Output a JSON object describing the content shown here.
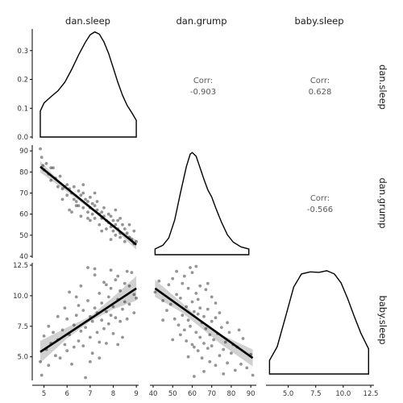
{
  "chart_data": {
    "type": "scatter-matrix",
    "variables": [
      "dan.sleep",
      "dan.grump",
      "baby.sleep"
    ],
    "axis_ranges": {
      "dan.sleep": [
        4.7,
        9.1
      ],
      "dan.grump": [
        40,
        92
      ],
      "baby.sleep": [
        3.2,
        12.5
      ],
      "density_y": [
        0,
        0.375
      ]
    },
    "ticks": {
      "dan.sleep": [
        "5",
        "6",
        "7",
        "8",
        "9"
      ],
      "dan.grump": [
        "40",
        "50",
        "60",
        "70",
        "80",
        "90"
      ],
      "baby.sleep_y": [
        "5.0",
        "7.5",
        "10.0",
        "12.5"
      ],
      "baby.sleep_x": [
        "5.0",
        "7.5",
        "10.0",
        "12.5"
      ],
      "density_y": [
        "0.0",
        "0.1",
        "0.2",
        "0.3"
      ]
    },
    "correlations": [
      {
        "row": "dan.sleep",
        "col": "dan.grump",
        "label": "Corr:",
        "value": "-0.903"
      },
      {
        "row": "dan.sleep",
        "col": "baby.sleep",
        "label": "Corr:",
        "value": "0.628"
      },
      {
        "row": "dan.grump",
        "col": "baby.sleep",
        "label": "Corr:",
        "value": "-0.566"
      }
    ],
    "densities": {
      "dan.sleep": [
        [
          4.84,
          0.09
        ],
        [
          5.0,
          0.118
        ],
        [
          5.3,
          0.14
        ],
        [
          5.6,
          0.16
        ],
        [
          5.9,
          0.19
        ],
        [
          6.2,
          0.235
        ],
        [
          6.5,
          0.285
        ],
        [
          6.8,
          0.33
        ],
        [
          7.0,
          0.355
        ],
        [
          7.2,
          0.365
        ],
        [
          7.4,
          0.357
        ],
        [
          7.6,
          0.33
        ],
        [
          7.8,
          0.29
        ],
        [
          8.0,
          0.24
        ],
        [
          8.2,
          0.19
        ],
        [
          8.4,
          0.145
        ],
        [
          8.6,
          0.11
        ],
        [
          8.8,
          0.085
        ],
        [
          9.0,
          0.058
        ]
      ],
      "dan.grump": [
        [
          41,
          0.055
        ],
        [
          45,
          0.09
        ],
        [
          48,
          0.16
        ],
        [
          51,
          0.33
        ],
        [
          54,
          0.59
        ],
        [
          57,
          0.84
        ],
        [
          59,
          0.96
        ],
        [
          60,
          0.975
        ],
        [
          62,
          0.94
        ],
        [
          64,
          0.83
        ],
        [
          66,
          0.72
        ],
        [
          68,
          0.62
        ],
        [
          70,
          0.55
        ],
        [
          72,
          0.45
        ],
        [
          75,
          0.31
        ],
        [
          78,
          0.19
        ],
        [
          81,
          0.12
        ],
        [
          85,
          0.075
        ],
        [
          89,
          0.055
        ]
      ],
      "baby.sleep": [
        [
          3.3,
          0.13
        ],
        [
          4.0,
          0.26
        ],
        [
          4.8,
          0.56
        ],
        [
          5.5,
          0.83
        ],
        [
          6.2,
          0.955
        ],
        [
          7.0,
          0.975
        ],
        [
          7.8,
          0.97
        ],
        [
          8.5,
          0.985
        ],
        [
          9.2,
          0.955
        ],
        [
          9.8,
          0.87
        ],
        [
          10.4,
          0.72
        ],
        [
          11.0,
          0.55
        ],
        [
          11.6,
          0.39
        ],
        [
          12.3,
          0.24
        ]
      ]
    },
    "pairs": {
      "grump_vs_sleep": {
        "points": [
          [
            4.84,
            91
          ],
          [
            4.9,
            87
          ],
          [
            4.95,
            83
          ],
          [
            5.0,
            81
          ],
          [
            5.1,
            84
          ],
          [
            5.2,
            79
          ],
          [
            5.3,
            82
          ],
          [
            5.4,
            82
          ],
          [
            5.5,
            77
          ],
          [
            5.6,
            73
          ],
          [
            5.7,
            78
          ],
          [
            5.8,
            72
          ],
          [
            5.9,
            73
          ],
          [
            6.0,
            74
          ],
          [
            6.0,
            69
          ],
          [
            6.1,
            72
          ],
          [
            6.2,
            70
          ],
          [
            6.3,
            67
          ],
          [
            6.3,
            73
          ],
          [
            6.4,
            66
          ],
          [
            6.5,
            71
          ],
          [
            6.5,
            64
          ],
          [
            6.6,
            69
          ],
          [
            6.7,
            70
          ],
          [
            6.7,
            63
          ],
          [
            6.8,
            67
          ],
          [
            6.9,
            66
          ],
          [
            6.9,
            61
          ],
          [
            7.0,
            68
          ],
          [
            7.0,
            63
          ],
          [
            7.1,
            65
          ],
          [
            7.1,
            60
          ],
          [
            7.2,
            64
          ],
          [
            7.2,
            58
          ],
          [
            7.3,
            62
          ],
          [
            7.3,
            66
          ],
          [
            7.4,
            60
          ],
          [
            7.4,
            55
          ],
          [
            7.5,
            61
          ],
          [
            7.5,
            58
          ],
          [
            7.6,
            59
          ],
          [
            7.6,
            63
          ],
          [
            7.7,
            57
          ],
          [
            7.7,
            53
          ],
          [
            7.8,
            60
          ],
          [
            7.8,
            56
          ],
          [
            7.9,
            54
          ],
          [
            7.9,
            59
          ],
          [
            8.0,
            57
          ],
          [
            8.0,
            52
          ],
          [
            8.1,
            55
          ],
          [
            8.1,
            50
          ],
          [
            8.2,
            53
          ],
          [
            8.2,
            57
          ],
          [
            8.3,
            51
          ],
          [
            8.3,
            49
          ],
          [
            8.4,
            55
          ],
          [
            8.5,
            53
          ],
          [
            8.5,
            47
          ],
          [
            8.6,
            51
          ],
          [
            8.7,
            49
          ],
          [
            8.7,
            55
          ],
          [
            8.8,
            48
          ],
          [
            8.9,
            52
          ],
          [
            8.9,
            46
          ],
          [
            9.0,
            47
          ],
          [
            6.6,
            59
          ],
          [
            7.2,
            70
          ],
          [
            6.1,
            62
          ],
          [
            5.3,
            76
          ],
          [
            7.9,
            48
          ],
          [
            6.7,
            74
          ],
          [
            8.3,
            58
          ],
          [
            7.0,
            57
          ],
          [
            6.4,
            64
          ],
          [
            5.8,
            67
          ],
          [
            8.1,
            62
          ],
          [
            7.5,
            52
          ],
          [
            6.9,
            58
          ],
          [
            6.2,
            61
          ]
        ],
        "fit": [
          [
            4.84,
            82.5
          ],
          [
            9.0,
            45.5
          ]
        ],
        "band": [
          [
            4.84,
            85.2,
            79.8
          ],
          [
            6.0,
            71.8,
            70.6
          ],
          [
            7.0,
            63.4,
            62.4
          ],
          [
            8.0,
            54.7,
            53.3
          ],
          [
            9.0,
            47.8,
            43.2
          ]
        ]
      },
      "baby_vs_sleep": {
        "points": [
          [
            4.84,
            4.6
          ],
          [
            4.9,
            3.5
          ],
          [
            5.0,
            6.7
          ],
          [
            5.1,
            5.6
          ],
          [
            5.2,
            4.3
          ],
          [
            5.3,
            6.1
          ],
          [
            5.4,
            7.0
          ],
          [
            5.5,
            5.1
          ],
          [
            5.6,
            6.4
          ],
          [
            5.7,
            4.9
          ],
          [
            5.8,
            7.2
          ],
          [
            5.9,
            6.0
          ],
          [
            6.0,
            5.5
          ],
          [
            6.0,
            8.1
          ],
          [
            6.1,
            6.8
          ],
          [
            6.2,
            4.4
          ],
          [
            6.3,
            7.6
          ],
          [
            6.3,
            5.8
          ],
          [
            6.4,
            8.4
          ],
          [
            6.5,
            6.3
          ],
          [
            6.5,
            9.2
          ],
          [
            6.6,
            7.1
          ],
          [
            6.7,
            5.9
          ],
          [
            6.7,
            8.8
          ],
          [
            6.8,
            7.4
          ],
          [
            6.8,
            3.3
          ],
          [
            6.9,
            9.6
          ],
          [
            7.0,
            6.6
          ],
          [
            7.0,
            8.3
          ],
          [
            7.1,
            7.9
          ],
          [
            7.1,
            5.3
          ],
          [
            7.2,
            9.0
          ],
          [
            7.2,
            11.7
          ],
          [
            7.3,
            7.0
          ],
          [
            7.3,
            8.6
          ],
          [
            7.4,
            6.2
          ],
          [
            7.4,
            10.2
          ],
          [
            7.5,
            8.0
          ],
          [
            7.5,
            9.4
          ],
          [
            7.6,
            7.3
          ],
          [
            7.6,
            11.1
          ],
          [
            7.7,
            8.7
          ],
          [
            7.7,
            6.1
          ],
          [
            7.8,
            9.9
          ],
          [
            7.8,
            7.7
          ],
          [
            7.9,
            10.6
          ],
          [
            7.9,
            8.4
          ],
          [
            8.0,
            9.1
          ],
          [
            8.0,
            6.9
          ],
          [
            8.1,
            11.3
          ],
          [
            8.1,
            8.2
          ],
          [
            8.2,
            9.7
          ],
          [
            8.2,
            6.0
          ],
          [
            8.3,
            10.4
          ],
          [
            8.3,
            7.9
          ],
          [
            8.4,
            8.9
          ],
          [
            8.5,
            11.0
          ],
          [
            8.5,
            9.5
          ],
          [
            8.6,
            8.1
          ],
          [
            8.7,
            10.8
          ],
          [
            8.7,
            9.3
          ],
          [
            8.8,
            11.9
          ],
          [
            8.9,
            8.6
          ],
          [
            8.9,
            10.1
          ],
          [
            9.0,
            9.8
          ],
          [
            7.2,
            12.2
          ],
          [
            6.4,
            9.9
          ],
          [
            5.6,
            8.3
          ],
          [
            7.9,
            12.1
          ],
          [
            8.6,
            12.0
          ],
          [
            6.1,
            10.3
          ],
          [
            7.4,
            4.9
          ],
          [
            5.2,
            7.5
          ],
          [
            6.9,
            12.3
          ],
          [
            8.4,
            6.6
          ],
          [
            7.7,
            10.9
          ],
          [
            6.6,
            10.8
          ],
          [
            8.2,
            11.6
          ],
          [
            5.9,
            9.0
          ],
          [
            7.0,
            4.6
          ]
        ],
        "fit": [
          [
            4.84,
            5.4
          ],
          [
            9.0,
            10.6
          ]
        ],
        "band": [
          [
            4.84,
            6.3,
            4.5
          ],
          [
            6.0,
            7.4,
            6.5
          ],
          [
            7.0,
            8.3,
            7.9
          ],
          [
            8.0,
            9.9,
            8.9
          ],
          [
            9.0,
            11.6,
            9.6
          ]
        ]
      },
      "baby_vs_grump": {
        "points": [
          [
            41,
            10.3
          ],
          [
            43,
            11.2
          ],
          [
            45,
            9.6
          ],
          [
            47,
            8.8
          ],
          [
            48,
            10.9
          ],
          [
            49,
            9.3
          ],
          [
            50,
            11.4
          ],
          [
            51,
            8.1
          ],
          [
            52,
            10.1
          ],
          [
            53,
            7.6
          ],
          [
            54,
            9.8
          ],
          [
            55,
            8.4
          ],
          [
            55,
            11.0
          ],
          [
            56,
            7.2
          ],
          [
            57,
            9.1
          ],
          [
            57,
            6.3
          ],
          [
            58,
            10.6
          ],
          [
            58,
            8.0
          ],
          [
            59,
            7.5
          ],
          [
            59,
            12.3
          ],
          [
            60,
            6.0
          ],
          [
            60,
            9.5
          ],
          [
            61,
            8.7
          ],
          [
            61,
            5.8
          ],
          [
            62,
            10.2
          ],
          [
            62,
            7.0
          ],
          [
            63,
            8.5
          ],
          [
            63,
            5.5
          ],
          [
            64,
            9.0
          ],
          [
            64,
            6.6
          ],
          [
            65,
            7.8
          ],
          [
            65,
            4.9
          ],
          [
            66,
            8.3
          ],
          [
            66,
            6.1
          ],
          [
            67,
            10.5
          ],
          [
            67,
            7.3
          ],
          [
            68,
            5.7
          ],
          [
            68,
            8.9
          ],
          [
            69,
            6.8
          ],
          [
            69,
            4.6
          ],
          [
            70,
            7.9
          ],
          [
            70,
            5.9
          ],
          [
            71,
            6.4
          ],
          [
            72,
            8.2
          ],
          [
            72,
            4.3
          ],
          [
            73,
            6.9
          ],
          [
            74,
            5.1
          ],
          [
            75,
            7.4
          ],
          [
            76,
            5.6
          ],
          [
            77,
            6.2
          ],
          [
            78,
            4.5
          ],
          [
            79,
            7.0
          ],
          [
            80,
            5.3
          ],
          [
            81,
            6.0
          ],
          [
            82,
            3.9
          ],
          [
            83,
            5.8
          ],
          [
            85,
            4.4
          ],
          [
            86,
            6.5
          ],
          [
            88,
            4.1
          ],
          [
            90,
            5.2
          ],
          [
            91,
            3.5
          ],
          [
            52,
            12.0
          ],
          [
            56,
            11.6
          ],
          [
            60,
            11.9
          ],
          [
            64,
            10.8
          ],
          [
            70,
            9.9
          ],
          [
            74,
            8.6
          ],
          [
            78,
            7.8
          ],
          [
            61,
            3.4
          ],
          [
            66,
            3.8
          ],
          [
            58,
            5.0
          ],
          [
            54,
            6.8
          ],
          [
            62,
            12.4
          ],
          [
            68,
            11.0
          ],
          [
            45,
            8.0
          ],
          [
            72,
            9.4
          ],
          [
            76,
            3.6
          ],
          [
            84,
            7.2
          ],
          [
            50,
            6.4
          ],
          [
            63,
            9.7
          ]
        ],
        "fit": [
          [
            41,
            10.6
          ],
          [
            91,
            4.9
          ]
        ],
        "band": [
          [
            41,
            11.3,
            9.9
          ],
          [
            55,
            9.4,
            8.6
          ],
          [
            65,
            7.9,
            7.3
          ],
          [
            75,
            6.8,
            6.0
          ],
          [
            91,
            5.6,
            4.2
          ]
        ]
      }
    }
  }
}
